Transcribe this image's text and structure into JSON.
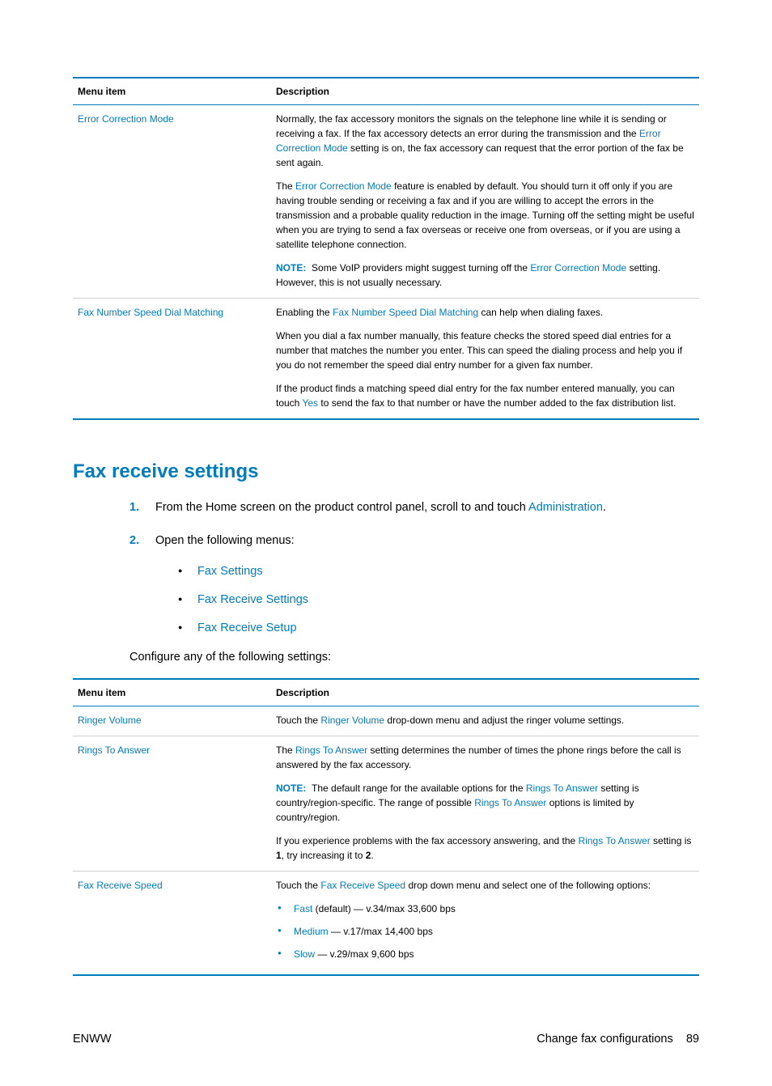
{
  "table1": {
    "head": {
      "c1": "Menu item",
      "c2": "Description"
    },
    "row1": {
      "item": "Error Correction Mode",
      "p1a": "Normally, the fax accessory monitors the signals on the telephone line while it is sending or receiving a fax. If the fax accessory detects an error during the transmission and the ",
      "p1link": "Error Correction Mode",
      "p1b": " setting is on, the fax accessory can request that the error portion of the fax be sent again.",
      "p2a": "The ",
      "p2link": "Error Correction Mode",
      "p2b": " feature is enabled by default. You should turn it off only if you are having trouble sending or receiving a fax and if you are willing to accept the errors in the transmission and a probable quality reduction in the image. Turning off the setting might be useful when you are trying to send a fax overseas or receive one from overseas, or if you are using a satellite telephone connection.",
      "noteLabel": "NOTE:",
      "p3a": "Some VoIP providers might suggest turning off the ",
      "p3link": "Error Correction Mode",
      "p3b": " setting. However, this is not usually necessary."
    },
    "row2": {
      "item": "Fax Number Speed Dial Matching",
      "p1a": "Enabling the ",
      "p1link": "Fax Number Speed Dial Matching",
      "p1b": " can help when dialing faxes.",
      "p2": "When you dial a fax number manually, this feature checks the stored speed dial entries for a number that matches the number you enter. This can speed the dialing process and help you if you do not remember the speed dial entry number for a given fax number.",
      "p3a": "If the product finds a matching speed dial entry for the fax number entered manually, you can touch ",
      "p3link": "Yes",
      "p3b": " to send the fax to that number or have the number added to the fax distribution list."
    }
  },
  "heading": "Fax receive settings",
  "steps": {
    "s1a": "From the Home screen on the product control panel, scroll to and touch ",
    "s1link": "Administration",
    "s1b": ".",
    "s2": "Open the following menus:",
    "sub1": "Fax Settings",
    "sub2": "Fax Receive Settings",
    "sub3": "Fax Receive Setup"
  },
  "config": "Configure any of the following settings:",
  "table2": {
    "head": {
      "c1": "Menu item",
      "c2": "Description"
    },
    "row1": {
      "item": "Ringer Volume",
      "p1a": "Touch the ",
      "p1link": "Ringer Volume",
      "p1b": " drop-down menu and adjust the ringer volume settings."
    },
    "row2": {
      "item": "Rings To Answer",
      "p1a": "The ",
      "p1link": "Rings To Answer",
      "p1b": " setting determines the number of times the phone rings before the call is answered by the fax accessory.",
      "noteLabel": "NOTE:",
      "p2a": "The default range for the available options for the ",
      "p2link1": "Rings To Answer",
      "p2b": " setting is country/region-specific. The range of possible ",
      "p2link2": "Rings To Answer",
      "p2c": " options is limited by country/region.",
      "p3a": "If you experience problems with the fax accessory answering, and the ",
      "p3link": "Rings To Answer",
      "p3b": " setting is ",
      "p3bold1": "1",
      "p3c": ", try increasing it to ",
      "p3bold2": "2",
      "p3d": "."
    },
    "row3": {
      "item": "Fax Receive Speed",
      "p1a": "Touch the ",
      "p1link": "Fax Receive Speed",
      "p1b": " drop down menu and select one of the following options:",
      "opt1link": "Fast",
      "opt1rest": " (default) — v.34/max 33,600 bps",
      "opt2link": "Medium",
      "opt2rest": " — v.17/max 14,400 bps",
      "opt3link": "Slow",
      "opt3rest": " — v.29/max 9,600 bps"
    }
  },
  "footer": {
    "left": "ENWW",
    "rightLabel": "Change fax configurations",
    "rightNum": "89"
  }
}
